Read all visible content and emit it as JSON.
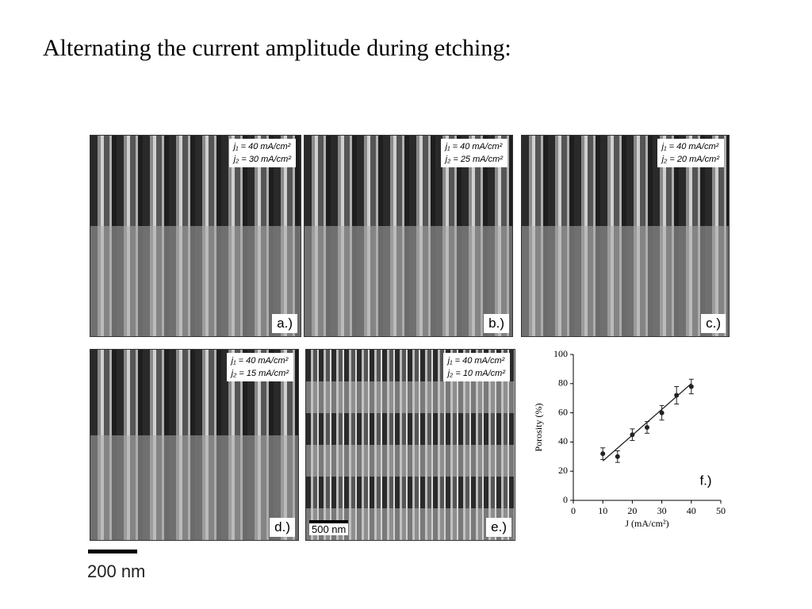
{
  "title": "Alternating the current amplitude during etching:",
  "panels": [
    {
      "j1": "j₁ = 40 mA/cm²",
      "j2": "j₂ = 30 mA/cm²",
      "letter": "a.)"
    },
    {
      "j1": "j₁ = 40 mA/cm²",
      "j2": "j₂ = 25 mA/cm²",
      "letter": "b.)"
    },
    {
      "j1": "j₁ = 40 mA/cm²",
      "j2": "j₂ = 20 mA/cm²",
      "letter": "c.)"
    },
    {
      "j1": "j₁ = 40 mA/cm²",
      "j2": "j₂ = 15 mA/cm²",
      "letter": "d.)"
    },
    {
      "j1": "j₁ = 40 mA/cm²",
      "j2": "j₂ = 10 mA/cm²",
      "letter": "e.)",
      "scale": "500 nm"
    }
  ],
  "scale_bar": "200 nm",
  "chart_data": {
    "type": "scatter",
    "annotation": "f.)",
    "x": [
      10,
      15,
      20,
      25,
      30,
      35,
      40
    ],
    "values": [
      32,
      30,
      45,
      50,
      60,
      72,
      78
    ],
    "errors": [
      4,
      4,
      4,
      4,
      5,
      6,
      5
    ],
    "fit_line": {
      "x": [
        10,
        40
      ],
      "values": [
        27,
        80
      ]
    },
    "xlabel": "J (mA/cm²)",
    "ylabel": "Porosity (%)",
    "xlim": [
      0,
      50
    ],
    "xticks": [
      0,
      10,
      20,
      30,
      40,
      50
    ],
    "ylim": [
      0,
      100
    ],
    "yticks": [
      0,
      20,
      40,
      60,
      80,
      100
    ],
    "color": "#222222"
  }
}
